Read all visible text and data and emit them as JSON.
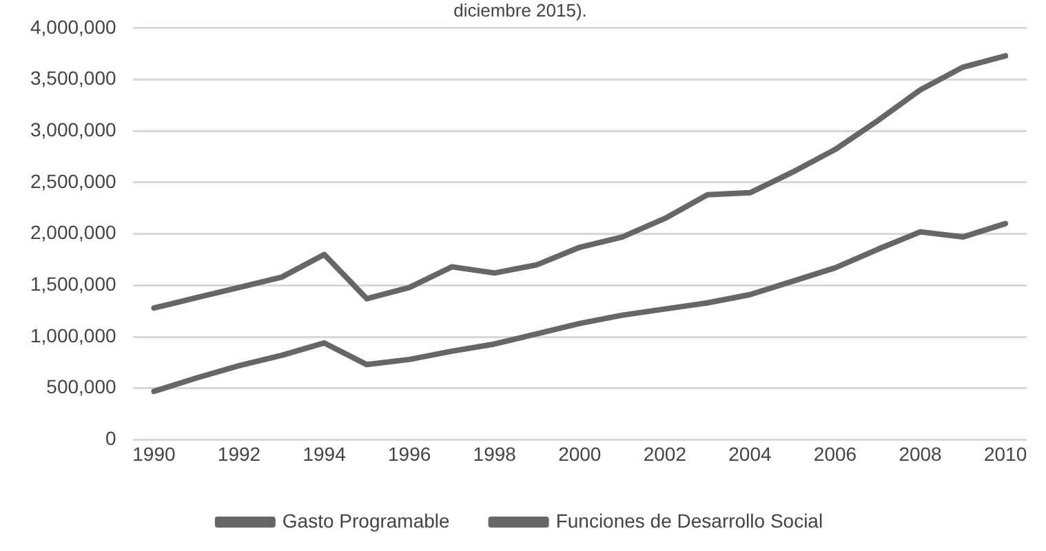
{
  "chart_data": {
    "type": "line",
    "title": "diciembre 2015).",
    "x": [
      1990,
      1991,
      1992,
      1993,
      1994,
      1995,
      1996,
      1997,
      1998,
      1999,
      2000,
      2001,
      2002,
      2003,
      2004,
      2005,
      2006,
      2007,
      2008,
      2009,
      2010
    ],
    "series": [
      {
        "name": "Gasto Programable",
        "color": "#666666",
        "values": [
          1280000,
          1380000,
          1480000,
          1580000,
          1800000,
          1370000,
          1480000,
          1680000,
          1620000,
          1700000,
          1870000,
          1970000,
          2150000,
          2380000,
          2400000,
          2600000,
          2820000,
          3100000,
          3400000,
          3620000,
          3730000
        ]
      },
      {
        "name": "Funciones de Desarrollo Social",
        "color": "#666666",
        "values": [
          470000,
          600000,
          720000,
          820000,
          940000,
          730000,
          780000,
          860000,
          930000,
          1030000,
          1130000,
          1210000,
          1270000,
          1330000,
          1410000,
          1540000,
          1670000,
          1850000,
          2020000,
          1970000,
          2100000
        ]
      }
    ],
    "xlim": [
      1989.5,
      2010.5
    ],
    "xticks": [
      1990,
      1992,
      1994,
      1996,
      1998,
      2000,
      2002,
      2004,
      2006,
      2008,
      2010
    ],
    "ylim": [
      0,
      4000000
    ],
    "yticks": [
      {
        "value": 0,
        "label": "0"
      },
      {
        "value": 500000,
        "label": "500,000"
      },
      {
        "value": 1000000,
        "label": "1,000,000"
      },
      {
        "value": 1500000,
        "label": "1,500,000"
      },
      {
        "value": 2000000,
        "label": "2,000,000"
      },
      {
        "value": 2500000,
        "label": "2,500,000"
      },
      {
        "value": 3000000,
        "label": "3,000,000"
      },
      {
        "value": 3500000,
        "label": "3,500,000"
      },
      {
        "value": 4000000,
        "label": "4,000,000"
      }
    ],
    "grid": "y",
    "legend": "bottom",
    "marker": "none",
    "line_style": "solid"
  }
}
